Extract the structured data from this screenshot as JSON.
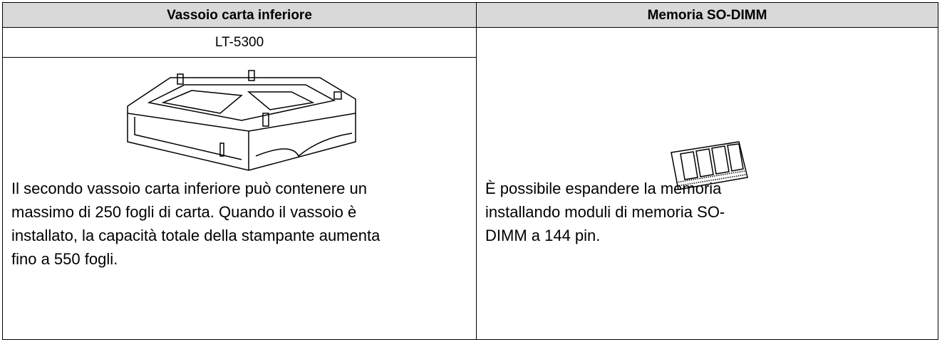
{
  "table": {
    "headers": [
      "Vassoio carta inferiore",
      "Memoria SO-DIMM"
    ],
    "left": {
      "model": "LT-5300",
      "description": "Il secondo vassoio carta inferiore può contenere un massimo di 250 fogli di carta. Quando il vassoio è installato, la capacità totale della stampante aumenta fino a 550 fogli."
    },
    "right": {
      "description": "È possibile espandere la memoria installando moduli di memoria SO-DIMM a 144 pin."
    }
  }
}
